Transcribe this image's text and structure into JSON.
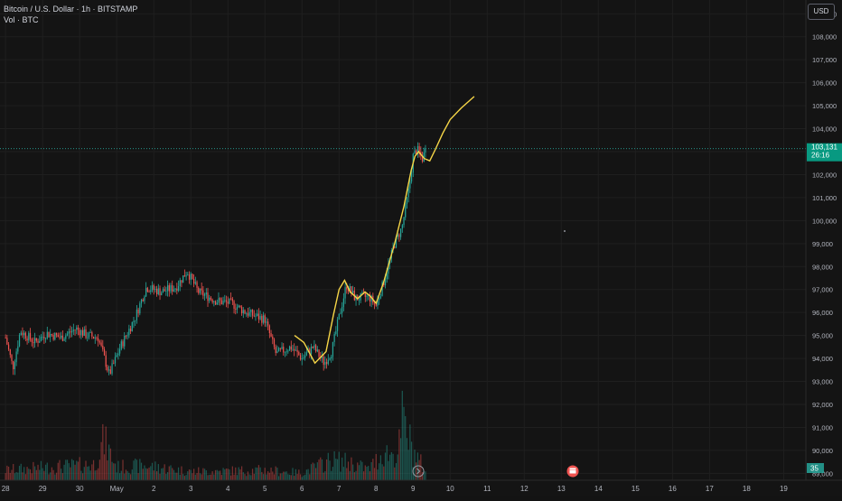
{
  "legend": {
    "title": "Bitcoin / U.S. Dollar · 1h · BITSTAMP",
    "volume_label": "Vol · BTC"
  },
  "currency_button": "USD",
  "last_price": {
    "label": "103,131",
    "countdown": "26:16",
    "value": 103131
  },
  "volume_badge": "35",
  "colors": {
    "up": "#26a69a",
    "down": "#ef5350",
    "projection": "#f5d547",
    "background": "#141414",
    "grid": "#1f1f1f",
    "axis_text": "#b2b5be"
  },
  "icons": {
    "replay": "replay-icon",
    "earnings": "event-flag-icon"
  },
  "chart_data": {
    "type": "candlestick",
    "title": "Bitcoin / U.S. Dollar · 1h · BITSTAMP",
    "ylim": [
      88700,
      109600
    ],
    "y_ticks": [
      89000,
      90000,
      91000,
      92000,
      93000,
      94000,
      95000,
      96000,
      97000,
      98000,
      99000,
      100000,
      101000,
      102000,
      103000,
      104000,
      105000,
      106000,
      107000,
      108000,
      109000
    ],
    "y_tick_labels": [
      "89,000",
      "90,000",
      "91,000",
      "92,000",
      "93,000",
      "94,000",
      "95,000",
      "96,000",
      "97,000",
      "98,000",
      "99,000",
      "100,000",
      "101,000",
      "102,000",
      "103,000",
      "104,000",
      "105,000",
      "106,000",
      "107,000",
      "108,000",
      "109,000"
    ],
    "x_ticks": [
      "28",
      "29",
      "30",
      "May",
      "2",
      "3",
      "4",
      "5",
      "6",
      "7",
      "8",
      "9",
      "10",
      "11",
      "12",
      "13",
      "14",
      "15",
      "16",
      "17",
      "18",
      "19"
    ],
    "x_range_days": [
      -0.15,
      21.6
    ],
    "anchors": [
      [
        0.0,
        94900
      ],
      [
        0.2,
        93600
      ],
      [
        0.4,
        95200
      ],
      [
        0.8,
        94700
      ],
      [
        1.1,
        95100
      ],
      [
        1.5,
        94900
      ],
      [
        1.9,
        95300
      ],
      [
        2.2,
        95000
      ],
      [
        2.5,
        94900
      ],
      [
        2.8,
        93300
      ],
      [
        3.1,
        94500
      ],
      [
        3.5,
        95800
      ],
      [
        3.8,
        97100
      ],
      [
        4.2,
        96900
      ],
      [
        4.6,
        97100
      ],
      [
        4.9,
        97800
      ],
      [
        5.2,
        96900
      ],
      [
        5.7,
        96500
      ],
      [
        6.1,
        96400
      ],
      [
        6.5,
        96000
      ],
      [
        7.0,
        95700
      ],
      [
        7.3,
        94200
      ],
      [
        7.7,
        94500
      ],
      [
        8.0,
        94000
      ],
      [
        8.3,
        94500
      ],
      [
        8.6,
        93800
      ],
      [
        8.8,
        94300
      ],
      [
        9.0,
        95800
      ],
      [
        9.2,
        97200
      ],
      [
        9.45,
        96600
      ],
      [
        9.8,
        96700
      ],
      [
        10.0,
        96300
      ],
      [
        10.2,
        97300
      ],
      [
        10.5,
        99000
      ],
      [
        10.7,
        99700
      ],
      [
        10.9,
        101500
      ],
      [
        11.0,
        102800
      ],
      [
        11.1,
        103100
      ],
      [
        11.25,
        102700
      ],
      [
        11.35,
        103131
      ]
    ],
    "vol_anchors": [
      [
        0.0,
        14
      ],
      [
        2.4,
        22
      ],
      [
        2.65,
        55
      ],
      [
        3.0,
        18
      ],
      [
        3.8,
        20
      ],
      [
        5.0,
        12
      ],
      [
        7.0,
        14
      ],
      [
        8.0,
        10
      ],
      [
        8.8,
        28
      ],
      [
        9.3,
        24
      ],
      [
        9.8,
        15
      ],
      [
        10.2,
        38
      ],
      [
        10.6,
        35
      ],
      [
        10.7,
        85
      ],
      [
        11.0,
        40
      ],
      [
        11.35,
        12
      ]
    ],
    "projection": [
      [
        7.8,
        95000
      ],
      [
        8.05,
        94700
      ],
      [
        8.35,
        93800
      ],
      [
        8.65,
        94300
      ],
      [
        8.85,
        95900
      ],
      [
        9.0,
        97000
      ],
      [
        9.15,
        97400
      ],
      [
        9.3,
        96900
      ],
      [
        9.5,
        96600
      ],
      [
        9.7,
        96900
      ],
      [
        9.85,
        96700
      ],
      [
        10.0,
        96400
      ],
      [
        10.2,
        97300
      ],
      [
        10.5,
        99000
      ],
      [
        10.75,
        100600
      ],
      [
        10.85,
        101400
      ],
      [
        10.95,
        102200
      ],
      [
        11.05,
        102800
      ],
      [
        11.15,
        103000
      ],
      [
        11.3,
        102700
      ],
      [
        11.45,
        102600
      ],
      [
        11.6,
        103100
      ],
      [
        11.8,
        103800
      ],
      [
        12.0,
        104400
      ],
      [
        12.3,
        104900
      ],
      [
        12.65,
        105400
      ]
    ],
    "last_price": 103131
  }
}
